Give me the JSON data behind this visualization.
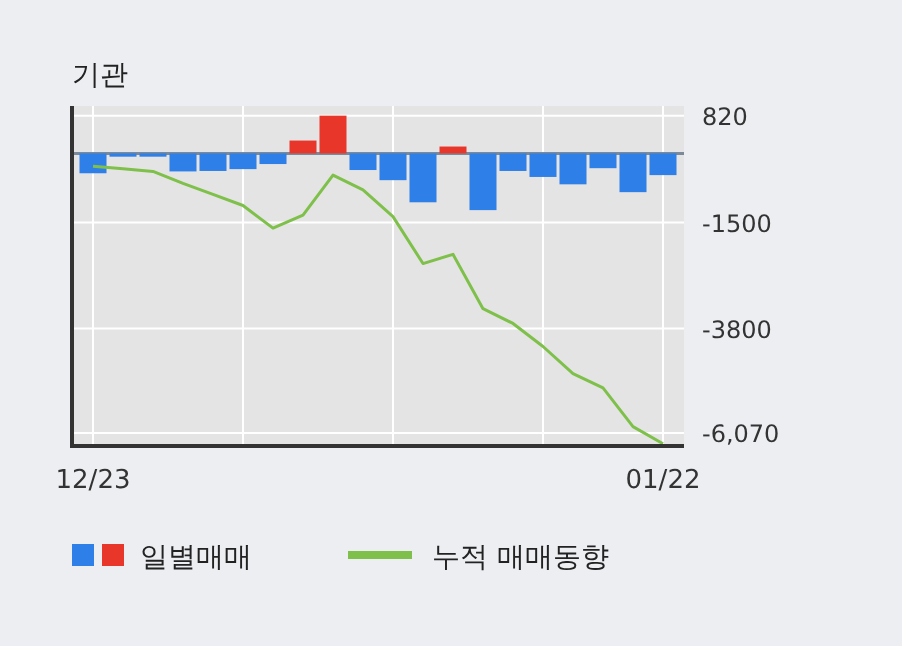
{
  "chart_data": {
    "type": "bar",
    "title": "기관",
    "categories": [
      "12/23",
      null,
      null,
      null,
      null,
      null,
      null,
      null,
      null,
      null,
      null,
      null,
      null,
      null,
      null,
      null,
      null,
      null,
      null,
      "01/22"
    ],
    "series": [
      {
        "name": "일별매매",
        "colors": [
          "#2f7fe8",
          "#2f7fe8",
          "#2f7fe8",
          "#2f7fe8",
          "#2f7fe8",
          "#2f7fe8",
          "#2f7fe8",
          "#e8362a",
          "#e8362a",
          "#2f7fe8",
          "#2f7fe8",
          "#2f7fe8",
          "#e8362a",
          "#2f7fe8",
          "#2f7fe8",
          "#2f7fe8",
          "#2f7fe8",
          "#2f7fe8",
          "#2f7fe8",
          "#2f7fe8"
        ],
        "values": [
          -430,
          -70,
          -70,
          -390,
          -380,
          -340,
          -230,
          280,
          820,
          -360,
          -580,
          -1060,
          150,
          -1230,
          -380,
          -510,
          -670,
          -320,
          -840,
          -470
        ]
      },
      {
        "name": "누적 매매동향",
        "type": "line",
        "color": "#7ec04a",
        "values": [
          -280,
          -330,
          -390,
          -650,
          -890,
          -1130,
          -1620,
          -1340,
          -470,
          -790,
          -1370,
          -2390,
          -2190,
          -3370,
          -3690,
          -4190,
          -4780,
          -5090,
          -5930,
          -6300
        ]
      }
    ],
    "ylim": [
      -6350,
      1030
    ],
    "yticks": [
      820,
      {
        "value": -1500,
        "label": "-1500"
      },
      {
        "value": -3800,
        "label": "-3800"
      },
      {
        "value": -6070,
        "label": "-6,070"
      }
    ],
    "grid": true,
    "legend": "bottom"
  }
}
